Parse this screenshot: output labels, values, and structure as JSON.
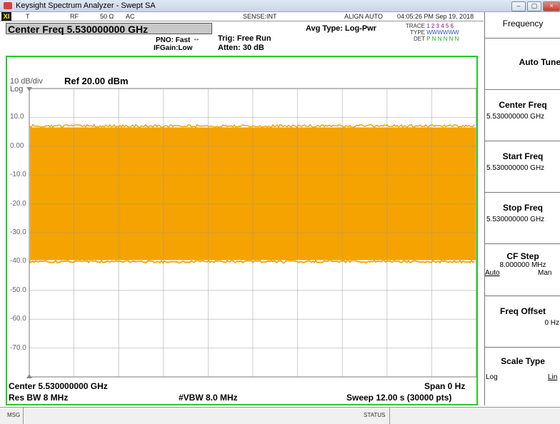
{
  "window": {
    "title": "Keysight Spectrum Analyzer - Swept SA",
    "minimize": "–",
    "maximize": "▢",
    "close": "×"
  },
  "status_row": {
    "x_marker": "XI",
    "t": "T",
    "rf": "RF",
    "ohm": "50 Ω",
    "ac": "AC",
    "sense": "SENSE:INT",
    "align": "ALIGN AUTO",
    "datetime": "04:05:26 PM Sep 19, 2018"
  },
  "header": {
    "center_freq": "Center Freq 5.530000000 GHz",
    "pno": "PNO: Fast",
    "ifgain": "IFGain:Low",
    "trig": "Trig: Free Run",
    "atten": "Atten: 30 dB",
    "avg_type": "Avg Type: Log-Pwr",
    "trace_label": "TRACE",
    "trace_nums": "1 2 3 4 5 6",
    "type_label": "TYPE",
    "type_vals": "WWWWWW",
    "det_label": "DET",
    "det_vals": "P N N N N N"
  },
  "display": {
    "scale": "10 dB/div",
    "ref": "Ref 20.00 dBm",
    "log": "Log",
    "y_labels": [
      "10.0",
      "0.00",
      "-10.0",
      "-20.0",
      "-30.0",
      "-40.0",
      "-50.0",
      "-60.0",
      "-70.0"
    ],
    "center": "Center 5.530000000 GHz",
    "span": "Span 0 Hz",
    "res_bw": "Res BW 8 MHz",
    "vbw": "#VBW 8.0 MHz",
    "sweep": "Sweep  12.00 s (30000 pts)",
    "trace_color": "#f5a300",
    "trace_top_dbm": 6.5,
    "trace_bottom_dbm": -39.5
  },
  "softkeys": {
    "menu_title": "Frequency",
    "auto_tune": "Auto Tune",
    "center_freq": {
      "label": "Center Freq",
      "value": "5.530000000 GHz"
    },
    "start_freq": {
      "label": "Start Freq",
      "value": "5.530000000 GHz"
    },
    "stop_freq": {
      "label": "Stop Freq",
      "value": "5.530000000 GHz"
    },
    "cf_step": {
      "label": "CF Step",
      "value": "8.000000 MHz",
      "auto": "Auto",
      "man": "Man"
    },
    "freq_offset": {
      "label": "Freq Offset",
      "value": "0 Hz"
    },
    "scale_type": {
      "label": "Scale Type",
      "log": "Log",
      "lin": "Lin"
    }
  },
  "msgbar": {
    "msg": "MSG",
    "status": "STATUS"
  }
}
